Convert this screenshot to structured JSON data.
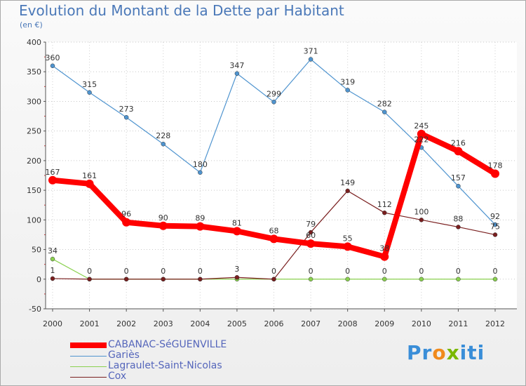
{
  "chart_data": {
    "type": "line",
    "title": "Evolution du Montant de la Dette par Habitant",
    "subtitle": "(en €)",
    "xlabel": "",
    "ylabel": "",
    "ylim": [
      -50,
      400
    ],
    "yticks": [
      "-50",
      "0",
      "50",
      "100",
      "150",
      "200",
      "250",
      "300",
      "350",
      "400"
    ],
    "categories": [
      "2000",
      "2001",
      "2002",
      "2003",
      "2004",
      "2005",
      "2006",
      "2007",
      "2008",
      "2009",
      "2010",
      "2011",
      "2012"
    ],
    "series": [
      {
        "name": "CABANAC-SéGUENVILLE",
        "color": "#ff0000",
        "values": [
          167,
          161,
          96,
          90,
          89,
          81,
          68,
          60,
          55,
          38,
          245,
          216,
          178
        ],
        "labels": [
          "167",
          "161",
          "96",
          "90",
          "89",
          "81",
          "68",
          "60",
          "55",
          "38",
          "245",
          "216",
          "178"
        ]
      },
      {
        "name": "Gariès",
        "color": "#4f94cf",
        "values": [
          360,
          315,
          273,
          228,
          180,
          347,
          299,
          371,
          319,
          282,
          222,
          157,
          92
        ],
        "labels": [
          "360",
          "315",
          "273",
          "228",
          "180",
          "347",
          "299",
          "371",
          "319",
          "282",
          "222",
          "157",
          "92"
        ]
      },
      {
        "name": "Lagraulet-Saint-Nicolas",
        "color": "#8ad14f",
        "values": [
          34,
          0,
          0,
          0,
          0,
          0,
          0,
          0,
          0,
          0,
          0,
          0,
          0
        ],
        "labels": [
          "34",
          "",
          "",
          "",
          "",
          "",
          "",
          "0",
          "0",
          "0",
          "0",
          "0",
          "0"
        ]
      },
      {
        "name": "Cox",
        "color": "#7a1f1f",
        "values": [
          1,
          0,
          0,
          0,
          0,
          3,
          0,
          79,
          149,
          112,
          100,
          88,
          75
        ],
        "labels": [
          "1",
          "0",
          "0",
          "0",
          "0",
          "3",
          "0",
          "79",
          "149",
          "112",
          "100",
          "88",
          "75"
        ]
      }
    ]
  },
  "brand": {
    "parts": [
      "Pr",
      "o",
      "x",
      "iti"
    ],
    "colors": [
      "#3a8ed8",
      "#f08a1c",
      "#7ab800",
      "#3a8ed8"
    ]
  }
}
